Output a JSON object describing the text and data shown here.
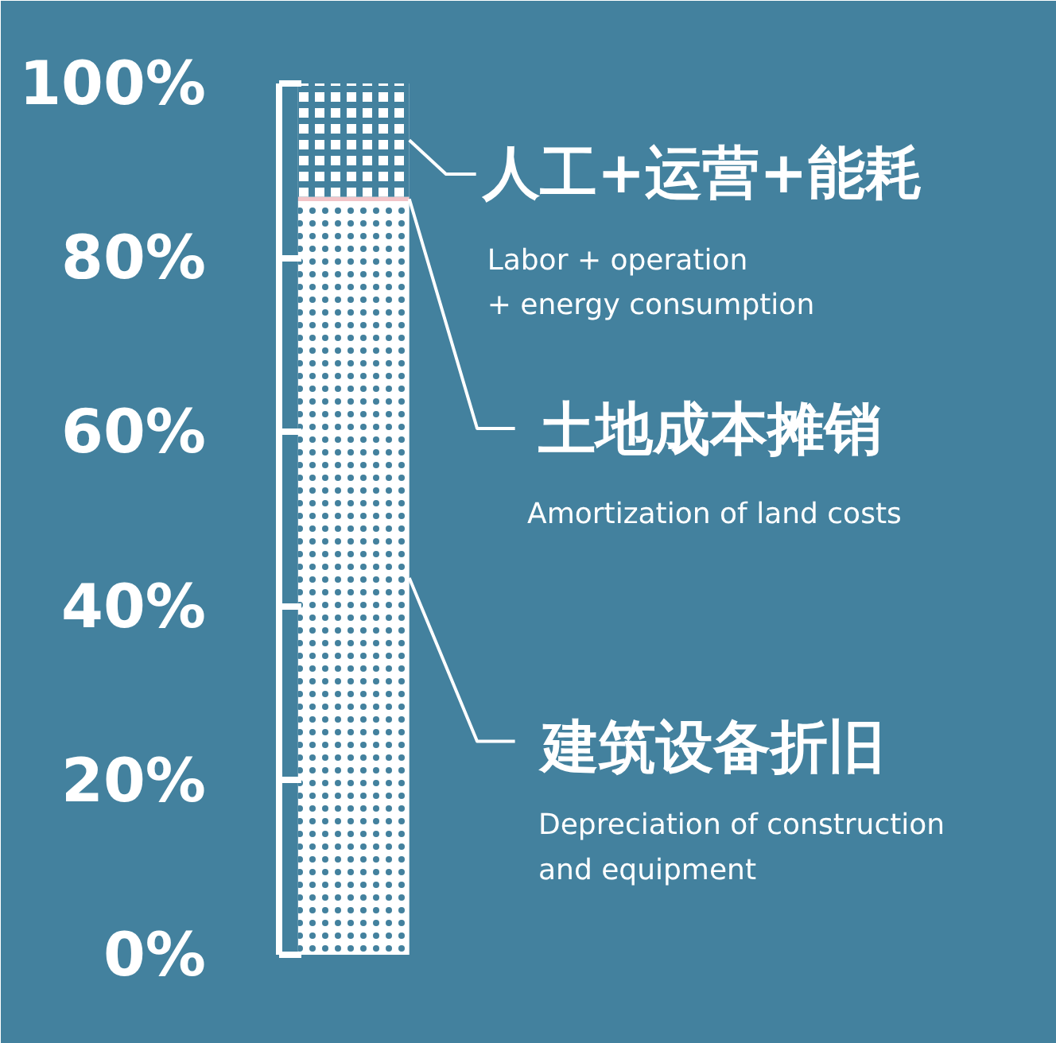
{
  "chart_data": {
    "type": "bar",
    "stacked": true,
    "categories": [
      null
    ],
    "series": [
      {
        "name": null,
        "color": "#ffffff",
        "values": [
          86.5
        ]
      },
      {
        "name": null,
        "color": "#f2c4c8",
        "values": [
          0.5
        ]
      },
      {
        "name": null,
        "color": "#ffffff",
        "values": [
          13
        ]
      }
    ],
    "ylim": [
      0,
      100
    ],
    "yticks": [
      {
        "value": 0,
        "label": "0%"
      },
      {
        "value": 20,
        "label": "20%"
      },
      {
        "value": 40,
        "label": "40%"
      },
      {
        "value": 60,
        "label": "60%"
      },
      {
        "value": 80,
        "label": "80%"
      },
      {
        "value": 100,
        "label": "100%"
      }
    ],
    "grid": false,
    "annotations": [
      "人工+运营+能耗",
      "Labor + operation\n+ energy consumption",
      "土地成本摊销",
      "Amortization of land costs",
      "建筑设备折旧",
      "Depreciation of construction\nand equipment"
    ]
  }
}
